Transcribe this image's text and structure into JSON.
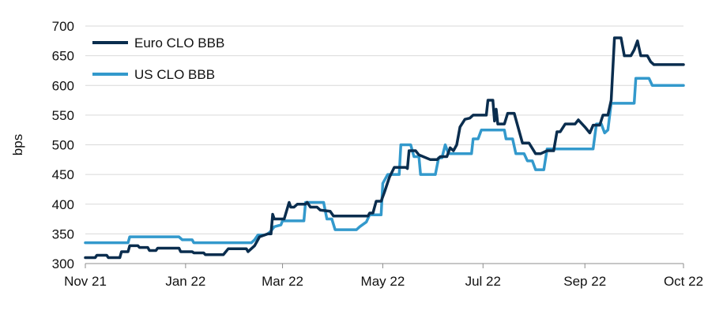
{
  "chart_data": {
    "type": "line",
    "title": "",
    "xlabel": "",
    "ylabel": "bps",
    "ylim": [
      300,
      700
    ],
    "yticks": [
      300,
      350,
      400,
      450,
      500,
      550,
      600,
      650,
      700
    ],
    "xlim": [
      "2021-11-01",
      "2022-10-31"
    ],
    "xticks": [
      {
        "label": "Nov 21",
        "date": "2021-11-01"
      },
      {
        "label": "Jan 22",
        "date": "2022-01-01"
      },
      {
        "label": "Mar 22",
        "date": "2022-03-01"
      },
      {
        "label": "May 22",
        "date": "2022-05-01"
      },
      {
        "label": "Jul 22",
        "date": "2022-07-01"
      },
      {
        "label": "Sep 22",
        "date": "2022-09-01"
      },
      {
        "label": "Oct 22",
        "date": "2022-10-31"
      }
    ],
    "grid": "horizontal",
    "legend": "top-left",
    "series": [
      {
        "name": "Euro CLO BBB",
        "color": "#0a2d4e",
        "points": [
          [
            "2021-11-01",
            310
          ],
          [
            "2021-11-07",
            310
          ],
          [
            "2021-11-08",
            314
          ],
          [
            "2021-11-14",
            314
          ],
          [
            "2021-11-15",
            310
          ],
          [
            "2021-11-22",
            310
          ],
          [
            "2021-11-23",
            320
          ],
          [
            "2021-11-27",
            320
          ],
          [
            "2021-11-28",
            330
          ],
          [
            "2021-12-03",
            330
          ],
          [
            "2021-12-04",
            327
          ],
          [
            "2021-12-09",
            327
          ],
          [
            "2021-12-10",
            322
          ],
          [
            "2021-12-14",
            322
          ],
          [
            "2021-12-15",
            326
          ],
          [
            "2021-12-28",
            326
          ],
          [
            "2021-12-29",
            320
          ],
          [
            "2022-01-05",
            320
          ],
          [
            "2022-01-06",
            318
          ],
          [
            "2022-01-12",
            318
          ],
          [
            "2022-01-13",
            315
          ],
          [
            "2022-01-24",
            315
          ],
          [
            "2022-01-27",
            325
          ],
          [
            "2022-02-07",
            325
          ],
          [
            "2022-02-08",
            320
          ],
          [
            "2022-02-12",
            330
          ],
          [
            "2022-02-15",
            345
          ],
          [
            "2022-02-20",
            350
          ],
          [
            "2022-02-22",
            350
          ],
          [
            "2022-02-23",
            383
          ],
          [
            "2022-02-24",
            375
          ],
          [
            "2022-03-02",
            375
          ],
          [
            "2022-03-05",
            403
          ],
          [
            "2022-03-06",
            395
          ],
          [
            "2022-03-08",
            395
          ],
          [
            "2022-03-10",
            400
          ],
          [
            "2022-03-15",
            400
          ],
          [
            "2022-03-16",
            403
          ],
          [
            "2022-03-18",
            395
          ],
          [
            "2022-03-22",
            395
          ],
          [
            "2022-03-24",
            390
          ],
          [
            "2022-03-30",
            388
          ],
          [
            "2022-04-01",
            380
          ],
          [
            "2022-04-22",
            380
          ],
          [
            "2022-04-23",
            385
          ],
          [
            "2022-04-25",
            385
          ],
          [
            "2022-04-27",
            405
          ],
          [
            "2022-04-30",
            405
          ],
          [
            "2022-05-02",
            420
          ],
          [
            "2022-05-05",
            445
          ],
          [
            "2022-05-08",
            462
          ],
          [
            "2022-05-15",
            462
          ],
          [
            "2022-05-16",
            460
          ],
          [
            "2022-05-17",
            490
          ],
          [
            "2022-05-21",
            490
          ],
          [
            "2022-05-23",
            483
          ],
          [
            "2022-05-30",
            475
          ],
          [
            "2022-06-03",
            475
          ],
          [
            "2022-06-05",
            480
          ],
          [
            "2022-06-09",
            480
          ],
          [
            "2022-06-11",
            495
          ],
          [
            "2022-06-13",
            490
          ],
          [
            "2022-06-15",
            500
          ],
          [
            "2022-06-17",
            530
          ],
          [
            "2022-06-20",
            543
          ],
          [
            "2022-06-23",
            545
          ],
          [
            "2022-06-25",
            550
          ],
          [
            "2022-07-03",
            550
          ],
          [
            "2022-07-04",
            575
          ],
          [
            "2022-07-07",
            575
          ],
          [
            "2022-07-08",
            540
          ],
          [
            "2022-07-09",
            560
          ],
          [
            "2022-07-10",
            535
          ],
          [
            "2022-07-14",
            535
          ],
          [
            "2022-07-16",
            553
          ],
          [
            "2022-07-20",
            553
          ],
          [
            "2022-07-25",
            503
          ],
          [
            "2022-07-29",
            503
          ],
          [
            "2022-08-02",
            485
          ],
          [
            "2022-08-05",
            485
          ],
          [
            "2022-08-09",
            490
          ],
          [
            "2022-08-13",
            490
          ],
          [
            "2022-08-15",
            522
          ],
          [
            "2022-08-17",
            522
          ],
          [
            "2022-08-20",
            535
          ],
          [
            "2022-08-26",
            535
          ],
          [
            "2022-08-28",
            542
          ],
          [
            "2022-09-01",
            530
          ],
          [
            "2022-09-04",
            520
          ],
          [
            "2022-09-06",
            533
          ],
          [
            "2022-09-10",
            533
          ],
          [
            "2022-09-12",
            550
          ],
          [
            "2022-09-15",
            550
          ],
          [
            "2022-09-17",
            575
          ],
          [
            "2022-09-19",
            680
          ],
          [
            "2022-09-23",
            680
          ],
          [
            "2022-09-25",
            650
          ],
          [
            "2022-09-29",
            650
          ],
          [
            "2022-10-01",
            660
          ],
          [
            "2022-10-03",
            675
          ],
          [
            "2022-10-05",
            650
          ],
          [
            "2022-10-09",
            650
          ],
          [
            "2022-10-11",
            640
          ],
          [
            "2022-10-13",
            635
          ],
          [
            "2022-10-31",
            635
          ]
        ]
      },
      {
        "name": "US CLO BBB",
        "color": "#3399cc",
        "points": [
          [
            "2021-11-01",
            335
          ],
          [
            "2021-11-27",
            335
          ],
          [
            "2021-11-28",
            345
          ],
          [
            "2021-12-28",
            345
          ],
          [
            "2021-12-30",
            340
          ],
          [
            "2022-01-05",
            340
          ],
          [
            "2022-01-06",
            335
          ],
          [
            "2022-02-10",
            335
          ],
          [
            "2022-02-12",
            340
          ],
          [
            "2022-02-14",
            348
          ],
          [
            "2022-02-18",
            348
          ],
          [
            "2022-02-20",
            350
          ],
          [
            "2022-02-22",
            355
          ],
          [
            "2022-02-24",
            362
          ],
          [
            "2022-02-28",
            365
          ],
          [
            "2022-03-01",
            372
          ],
          [
            "2022-03-14",
            372
          ],
          [
            "2022-03-15",
            403
          ],
          [
            "2022-03-26",
            403
          ],
          [
            "2022-03-28",
            375
          ],
          [
            "2022-03-31",
            375
          ],
          [
            "2022-04-02",
            357
          ],
          [
            "2022-04-15",
            357
          ],
          [
            "2022-04-17",
            362
          ],
          [
            "2022-04-21",
            370
          ],
          [
            "2022-04-23",
            382
          ],
          [
            "2022-04-30",
            382
          ],
          [
            "2022-05-01",
            435
          ],
          [
            "2022-05-04",
            450
          ],
          [
            "2022-05-11",
            450
          ],
          [
            "2022-05-12",
            500
          ],
          [
            "2022-05-18",
            500
          ],
          [
            "2022-05-20",
            480
          ],
          [
            "2022-05-23",
            480
          ],
          [
            "2022-05-24",
            450
          ],
          [
            "2022-06-02",
            450
          ],
          [
            "2022-06-04",
            478
          ],
          [
            "2022-06-06",
            478
          ],
          [
            "2022-06-08",
            500
          ],
          [
            "2022-06-10",
            485
          ],
          [
            "2022-06-24",
            485
          ],
          [
            "2022-06-25",
            510
          ],
          [
            "2022-06-28",
            510
          ],
          [
            "2022-06-30",
            525
          ],
          [
            "2022-07-14",
            525
          ],
          [
            "2022-07-15",
            510
          ],
          [
            "2022-07-19",
            510
          ],
          [
            "2022-07-21",
            485
          ],
          [
            "2022-07-26",
            485
          ],
          [
            "2022-07-28",
            473
          ],
          [
            "2022-07-31",
            473
          ],
          [
            "2022-08-02",
            458
          ],
          [
            "2022-08-07",
            458
          ],
          [
            "2022-08-09",
            493
          ],
          [
            "2022-09-06",
            493
          ],
          [
            "2022-09-08",
            535
          ],
          [
            "2022-09-11",
            535
          ],
          [
            "2022-09-13",
            520
          ],
          [
            "2022-09-15",
            525
          ],
          [
            "2022-09-17",
            570
          ],
          [
            "2022-10-01",
            570
          ],
          [
            "2022-10-02",
            612
          ],
          [
            "2022-10-10",
            612
          ],
          [
            "2022-10-12",
            600
          ],
          [
            "2022-10-31",
            600
          ]
        ]
      }
    ]
  }
}
